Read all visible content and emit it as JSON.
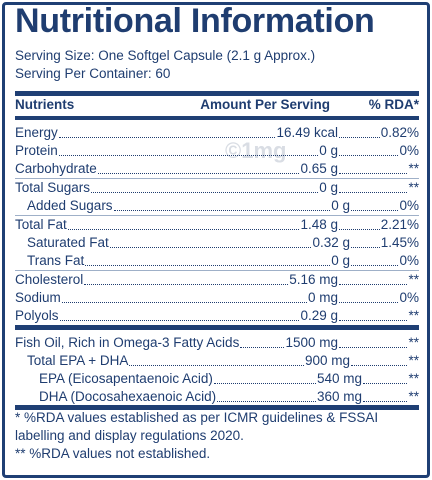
{
  "title": "Nutritional Information",
  "watermark": "©1mg",
  "serving": [
    "Serving Size: One Softgel Capsule (2.1 g Approx.)",
    "Serving Per Container: 60"
  ],
  "header": [
    "Nutrients",
    "Amount Per Serving",
    "% RDA*"
  ],
  "nutrients": [
    [
      "Energy",
      "16.49 kcal",
      "0.82%"
    ],
    [
      "Protein",
      "0 g",
      "0%"
    ],
    [
      "Carbohydrate",
      "0.65 g",
      "**"
    ],
    [
      "Total Sugars",
      "0 g",
      "**"
    ],
    [
      "Added Sugars",
      "0 g",
      "0%"
    ],
    [
      "Total Fat",
      "1.48 g",
      "2.21%"
    ],
    [
      "Saturated Fat",
      "0.32 g",
      "1.45%"
    ],
    [
      "Trans Fat",
      "0 g",
      "0%"
    ],
    [
      "Cholesterol",
      "5.16 mg",
      "**"
    ],
    [
      "Sodium",
      "0 mg",
      "0%"
    ],
    [
      "Polyols",
      "0.29 g",
      "**"
    ]
  ],
  "fatty_acids": [
    [
      "Fish Oil, Rich in Omega-3 Fatty Acids",
      "1500 mg",
      "**"
    ],
    [
      "Total EPA + DHA",
      "900 mg",
      "**"
    ],
    [
      "EPA (Eicosapentaenoic Acid)",
      "540 mg",
      "**"
    ],
    [
      "DHA (Docosahexaenoic Acid)",
      "360 mg",
      "**"
    ]
  ],
  "footnotes": [
    "* %RDA values established as per ICMR guidelines & FSSAI labelling and display regulations 2020.",
    "** %RDA values not established."
  ]
}
